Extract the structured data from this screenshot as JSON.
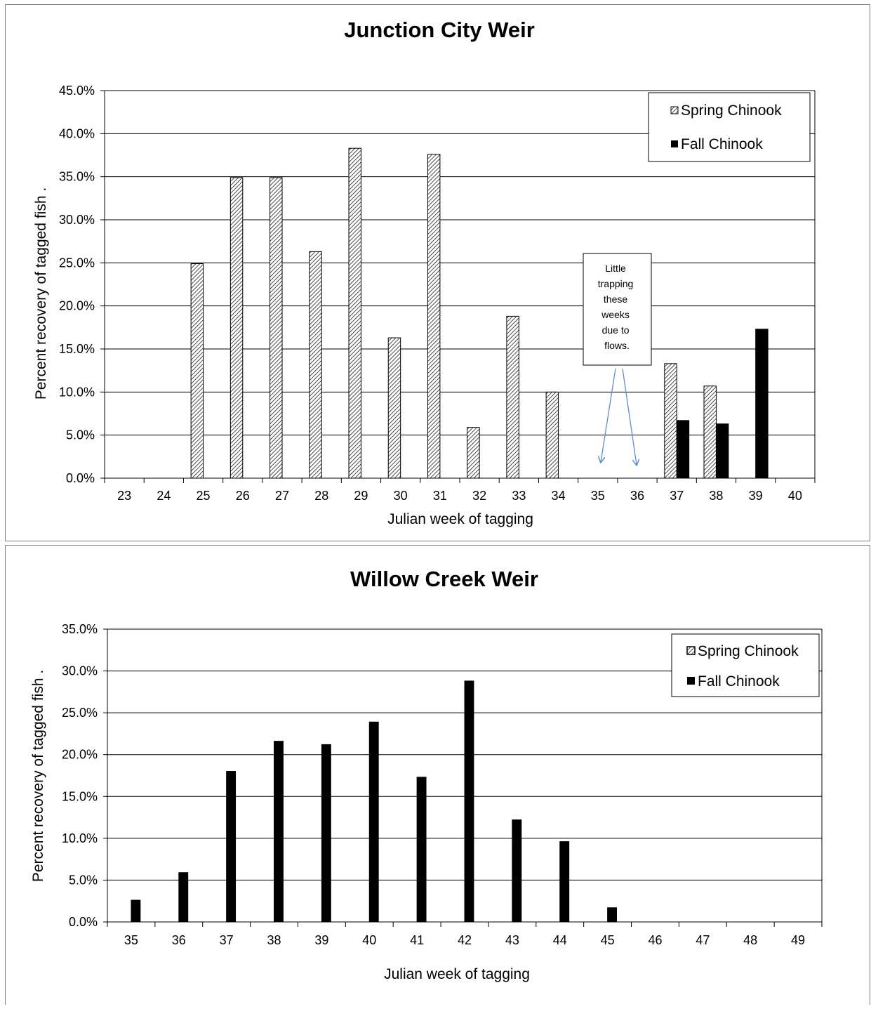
{
  "chart_data": [
    {
      "type": "bar",
      "title": "Junction City Weir",
      "xlabel": "Julian week of tagging",
      "ylabel": "Percent recovery of tagged fish .",
      "categories": [
        "23",
        "24",
        "25",
        "26",
        "27",
        "28",
        "29",
        "30",
        "31",
        "32",
        "33",
        "34",
        "35",
        "36",
        "37",
        "38",
        "39",
        "40"
      ],
      "series": [
        {
          "name": "Spring Chinook",
          "pattern": "hatched",
          "values": [
            0,
            0,
            24.9,
            34.9,
            34.9,
            26.3,
            38.3,
            16.3,
            37.6,
            5.9,
            18.8,
            10.0,
            0,
            0,
            13.3,
            10.7,
            0,
            0
          ]
        },
        {
          "name": "Fall Chinook",
          "pattern": "solid",
          "values": [
            0,
            0,
            0,
            0,
            0,
            0,
            0,
            0,
            0,
            0,
            0,
            0,
            0,
            0,
            6.7,
            6.3,
            17.3,
            0
          ]
        }
      ],
      "ylim": [
        0,
        45
      ],
      "ytick_labels": [
        "0.0%",
        "5.0%",
        "10.0%",
        "15.0%",
        "20.0%",
        "25.0%",
        "30.0%",
        "35.0%",
        "40.0%",
        "45.0%"
      ],
      "grid": true,
      "legend_position": "top-right",
      "annotation": {
        "lines": [
          "Little",
          "trapping",
          "these",
          "weeks",
          "due to",
          "flows."
        ],
        "points_to": [
          "35",
          "36"
        ]
      },
      "colors": {
        "bar": "#000000",
        "arrow": "#5b8fd0",
        "grid": "#000000"
      }
    },
    {
      "type": "bar",
      "title": "Willow Creek Weir",
      "xlabel": "Julian week of tagging",
      "ylabel": "Percent recovery of tagged fish .",
      "categories": [
        "35",
        "36",
        "37",
        "38",
        "39",
        "40",
        "41",
        "42",
        "43",
        "44",
        "45",
        "46",
        "47",
        "48",
        "49"
      ],
      "series": [
        {
          "name": "Spring Chinook",
          "pattern": "hatched",
          "values": [
            0,
            0,
            0,
            0,
            0,
            0,
            0,
            0,
            0,
            0,
            0,
            0,
            0,
            0,
            0
          ]
        },
        {
          "name": "Fall Chinook",
          "pattern": "solid",
          "values": [
            2.6,
            5.9,
            18.0,
            21.6,
            21.2,
            23.9,
            17.3,
            28.8,
            12.2,
            9.6,
            1.7,
            0,
            0,
            0,
            0
          ]
        }
      ],
      "ylim": [
        0,
        35
      ],
      "ytick_labels": [
        "0.0%",
        "5.0%",
        "10.0%",
        "15.0%",
        "20.0%",
        "25.0%",
        "30.0%",
        "35.0%"
      ],
      "grid": true,
      "legend_position": "top-right",
      "colors": {
        "bar": "#000000",
        "grid": "#000000"
      }
    }
  ]
}
